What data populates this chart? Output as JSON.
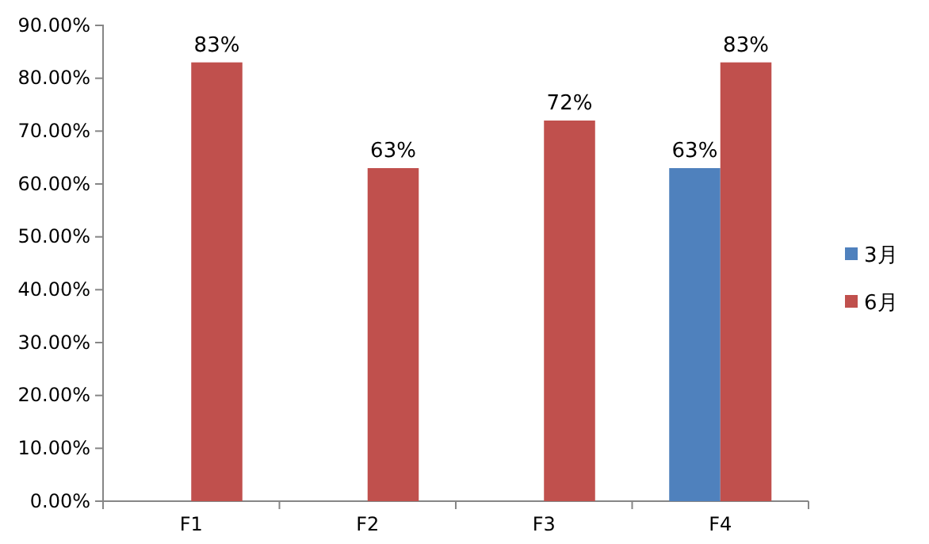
{
  "chart_data": {
    "type": "bar",
    "categories": [
      "F1",
      "F2",
      "F3",
      "F4"
    ],
    "series": [
      {
        "name": "3月",
        "color": "#4f81bd",
        "values": [
          null,
          null,
          null,
          63
        ],
        "value_labels": [
          null,
          null,
          null,
          "63%"
        ]
      },
      {
        "name": "6月",
        "color": "#c0504d",
        "values": [
          83,
          63,
          72,
          83
        ],
        "value_labels": [
          "83%",
          "63%",
          "72%",
          "83%"
        ]
      }
    ],
    "ylim": [
      0,
      90
    ],
    "yticks": [
      {
        "value": 0,
        "label": "0.00%"
      },
      {
        "value": 10,
        "label": "10.00%"
      },
      {
        "value": 20,
        "label": "20.00%"
      },
      {
        "value": 30,
        "label": "30.00%"
      },
      {
        "value": 40,
        "label": "40.00%"
      },
      {
        "value": 50,
        "label": "50.00%"
      },
      {
        "value": 60,
        "label": "60.00%"
      },
      {
        "value": 70,
        "label": "70.00%"
      },
      {
        "value": 80,
        "label": "80.00%"
      },
      {
        "value": 90,
        "label": "90.00%"
      }
    ],
    "legend": "right"
  }
}
